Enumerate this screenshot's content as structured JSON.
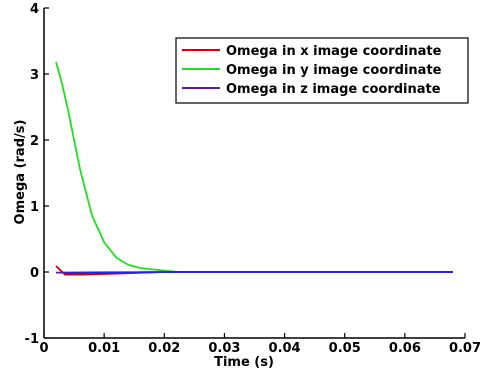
{
  "chart_data": {
    "type": "line",
    "xlabel": "Time (s)",
    "ylabel": "Omega (rad/s)",
    "xlim": [
      0,
      0.07
    ],
    "ylim": [
      -1,
      4
    ],
    "x_ticks": [
      0,
      0.01,
      0.02,
      0.03,
      0.04,
      0.05,
      0.06,
      0.07
    ],
    "x_tick_labels": [
      "0",
      "0.01",
      "0.02",
      "0.03",
      "0.04",
      "0.05",
      "0.06",
      "0.07"
    ],
    "y_ticks": [
      -1,
      0,
      1,
      2,
      3,
      4
    ],
    "y_tick_labels": [
      "-1",
      "0",
      "1",
      "2",
      "3",
      "4"
    ],
    "grid": false,
    "legend_position": "top-right",
    "series": [
      {
        "name": "Omega in x image coordinate",
        "color": "#cc0000",
        "points": [
          [
            0.002,
            0.09
          ],
          [
            0.0035,
            -0.04
          ],
          [
            0.006,
            -0.04
          ],
          [
            0.01,
            -0.03
          ],
          [
            0.015,
            -0.015
          ],
          [
            0.02,
            0.0
          ],
          [
            0.068,
            0.0
          ]
        ]
      },
      {
        "name": "Omega in y image coordinate",
        "color": "#22dd22",
        "points": [
          [
            0.002,
            3.18
          ],
          [
            0.003,
            2.85
          ],
          [
            0.004,
            2.45
          ],
          [
            0.005,
            2.0
          ],
          [
            0.006,
            1.55
          ],
          [
            0.008,
            0.85
          ],
          [
            0.01,
            0.45
          ],
          [
            0.012,
            0.22
          ],
          [
            0.014,
            0.11
          ],
          [
            0.016,
            0.06
          ],
          [
            0.018,
            0.04
          ],
          [
            0.02,
            0.02
          ],
          [
            0.0225,
            0.0
          ],
          [
            0.068,
            0.0
          ]
        ]
      },
      {
        "name": "Omega in z image coordinate",
        "color": "#5a1aa8",
        "points": [
          [
            0.002,
            -0.01
          ],
          [
            0.01,
            -0.005
          ],
          [
            0.022,
            0.0
          ],
          [
            0.068,
            0.0
          ]
        ]
      },
      {
        "name": "",
        "color": "#2222ee",
        "points": [
          [
            0.0035,
            -0.02
          ],
          [
            0.012,
            -0.01
          ],
          [
            0.02,
            0.0
          ],
          [
            0.068,
            0.0
          ]
        ]
      }
    ]
  }
}
